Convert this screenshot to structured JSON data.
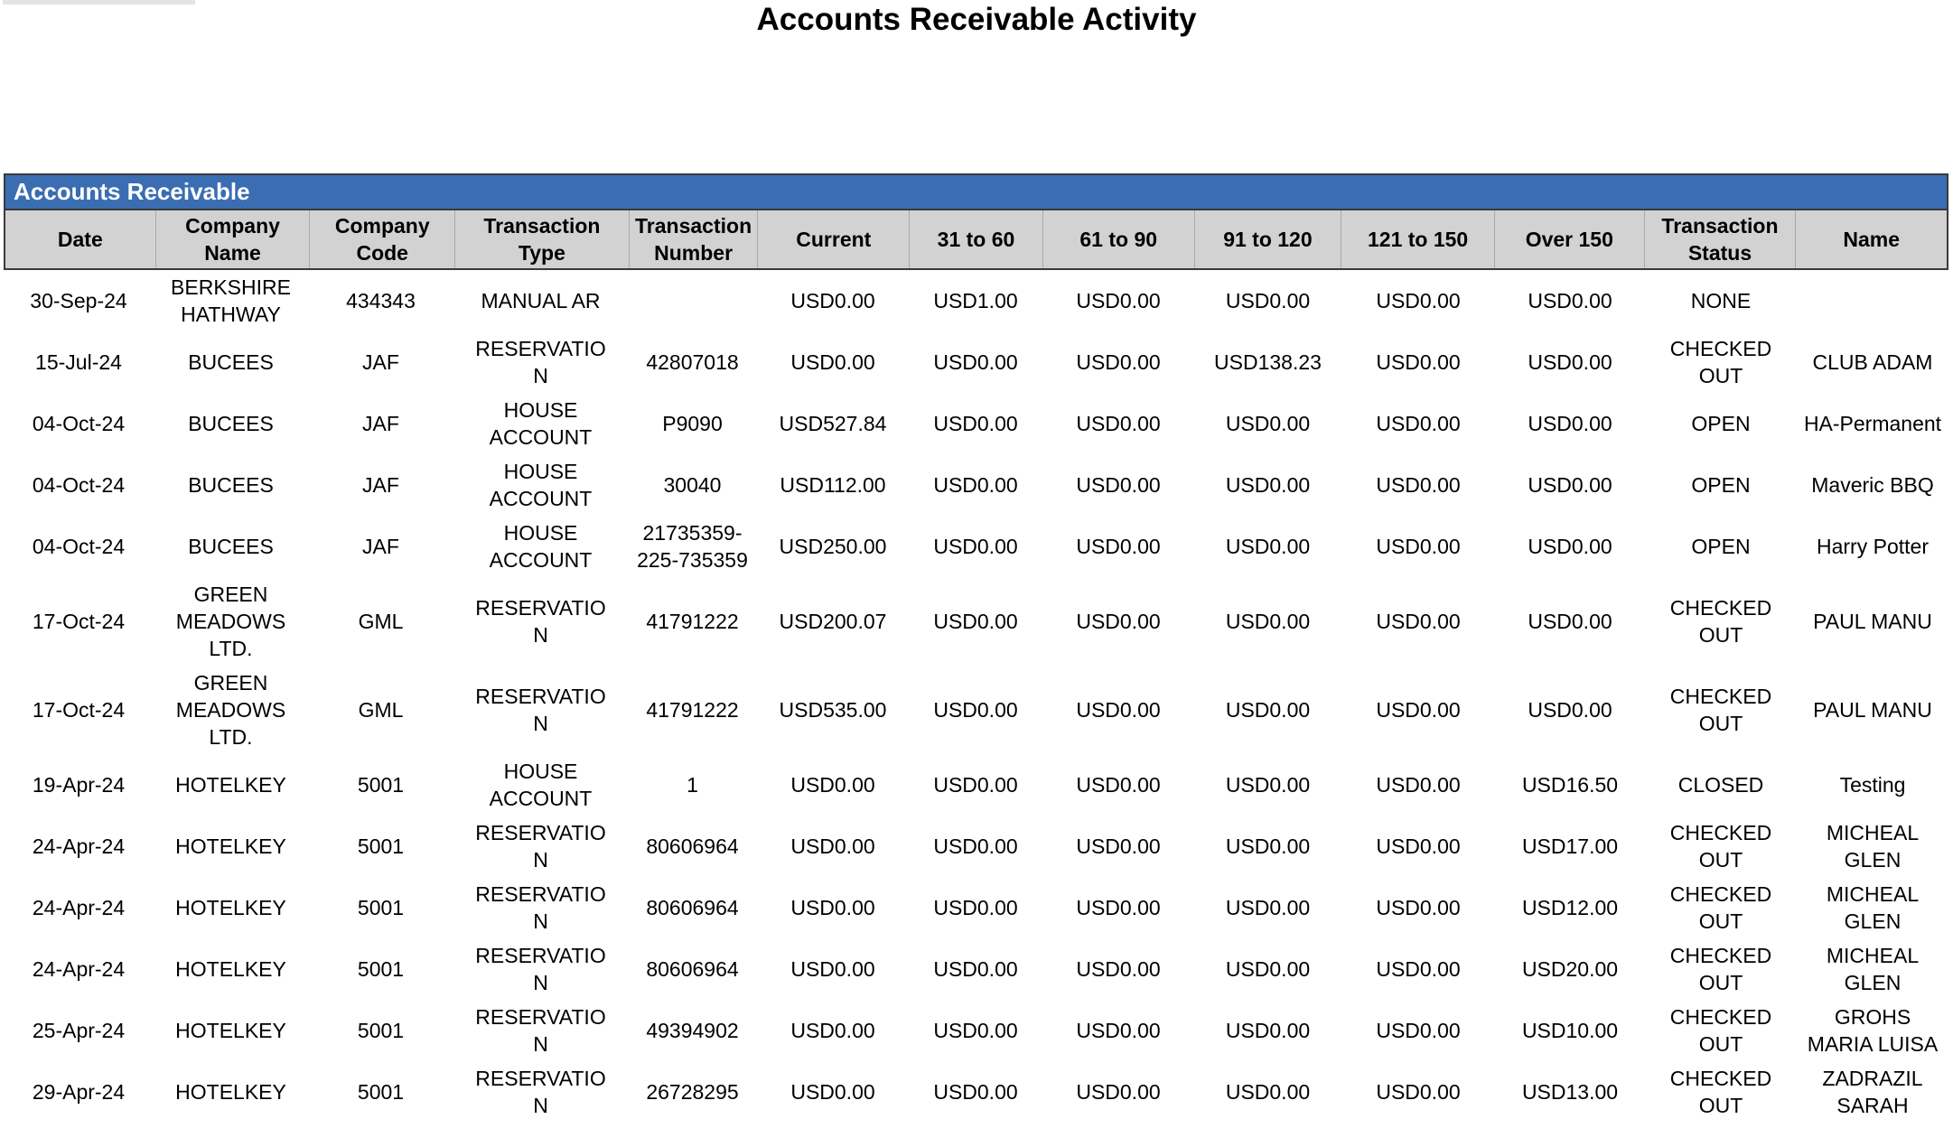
{
  "page": {
    "title": "Accounts Receivable Activity"
  },
  "colors": {
    "section_bar_blue": "#3A6DB2",
    "header_row_gray": "#D2D2D2",
    "border_dark": "#3A3A3A",
    "top_strip_gray": "#E4E4E4",
    "text": "#000000",
    "section_title_text": "#FFFFFF"
  },
  "table": {
    "section_title": "Accounts Receivable",
    "columns": [
      "Date",
      "Company\nName",
      "Company\nCode",
      "Transaction\nType",
      "Transaction\nNumber",
      "Current",
      "31 to 60",
      "61 to 90",
      "91 to 120",
      "121 to 150",
      "Over 150",
      "Transaction\nStatus",
      "Name"
    ],
    "rows": [
      {
        "date": "30-Sep-24",
        "company_name": "BERKSHIRE\nHATHWAY",
        "company_code": "434343",
        "transaction_type": "MANUAL AR",
        "transaction_number": "",
        "current": "USD0.00",
        "b31_60": "USD1.00",
        "b61_90": "USD0.00",
        "b91_120": "USD0.00",
        "b121_150": "USD0.00",
        "over_150": "USD0.00",
        "transaction_status": "NONE",
        "name": ""
      },
      {
        "date": "15-Jul-24",
        "company_name": "BUCEES",
        "company_code": "JAF",
        "transaction_type": "RESERVATIO\nN",
        "transaction_number": "42807018",
        "current": "USD0.00",
        "b31_60": "USD0.00",
        "b61_90": "USD0.00",
        "b91_120": "USD138.23",
        "b121_150": "USD0.00",
        "over_150": "USD0.00",
        "transaction_status": "CHECKED\nOUT",
        "name": "CLUB ADAM"
      },
      {
        "date": "04-Oct-24",
        "company_name": "BUCEES",
        "company_code": "JAF",
        "transaction_type": "HOUSE\nACCOUNT",
        "transaction_number": "P9090",
        "current": "USD527.84",
        "b31_60": "USD0.00",
        "b61_90": "USD0.00",
        "b91_120": "USD0.00",
        "b121_150": "USD0.00",
        "over_150": "USD0.00",
        "transaction_status": "OPEN",
        "name": "HA-Permanent"
      },
      {
        "date": "04-Oct-24",
        "company_name": "BUCEES",
        "company_code": "JAF",
        "transaction_type": "HOUSE\nACCOUNT",
        "transaction_number": "30040",
        "current": "USD112.00",
        "b31_60": "USD0.00",
        "b61_90": "USD0.00",
        "b91_120": "USD0.00",
        "b121_150": "USD0.00",
        "over_150": "USD0.00",
        "transaction_status": "OPEN",
        "name": "Maveric BBQ"
      },
      {
        "date": "04-Oct-24",
        "company_name": "BUCEES",
        "company_code": "JAF",
        "transaction_type": "HOUSE\nACCOUNT",
        "transaction_number": "21735359-\n225-735359",
        "current": "USD250.00",
        "b31_60": "USD0.00",
        "b61_90": "USD0.00",
        "b91_120": "USD0.00",
        "b121_150": "USD0.00",
        "over_150": "USD0.00",
        "transaction_status": "OPEN",
        "name": "Harry Potter"
      },
      {
        "date": "17-Oct-24",
        "company_name": "GREEN\nMEADOWS\nLTD.",
        "company_code": "GML",
        "transaction_type": "RESERVATIO\nN",
        "transaction_number": "41791222",
        "current": "USD200.07",
        "b31_60": "USD0.00",
        "b61_90": "USD0.00",
        "b91_120": "USD0.00",
        "b121_150": "USD0.00",
        "over_150": "USD0.00",
        "transaction_status": "CHECKED\nOUT",
        "name": "PAUL MANU"
      },
      {
        "date": "17-Oct-24",
        "company_name": "GREEN\nMEADOWS\nLTD.",
        "company_code": "GML",
        "transaction_type": "RESERVATIO\nN",
        "transaction_number": "41791222",
        "current": "USD535.00",
        "b31_60": "USD0.00",
        "b61_90": "USD0.00",
        "b91_120": "USD0.00",
        "b121_150": "USD0.00",
        "over_150": "USD0.00",
        "transaction_status": "CHECKED\nOUT",
        "name": "PAUL MANU"
      },
      {
        "date": "19-Apr-24",
        "company_name": "HOTELKEY",
        "company_code": "5001",
        "transaction_type": "HOUSE\nACCOUNT",
        "transaction_number": "1",
        "current": "USD0.00",
        "b31_60": "USD0.00",
        "b61_90": "USD0.00",
        "b91_120": "USD0.00",
        "b121_150": "USD0.00",
        "over_150": "USD16.50",
        "transaction_status": "CLOSED",
        "name": "Testing"
      },
      {
        "date": "24-Apr-24",
        "company_name": "HOTELKEY",
        "company_code": "5001",
        "transaction_type": "RESERVATIO\nN",
        "transaction_number": "80606964",
        "current": "USD0.00",
        "b31_60": "USD0.00",
        "b61_90": "USD0.00",
        "b91_120": "USD0.00",
        "b121_150": "USD0.00",
        "over_150": "USD17.00",
        "transaction_status": "CHECKED\nOUT",
        "name": "MICHEAL\nGLEN"
      },
      {
        "date": "24-Apr-24",
        "company_name": "HOTELKEY",
        "company_code": "5001",
        "transaction_type": "RESERVATIO\nN",
        "transaction_number": "80606964",
        "current": "USD0.00",
        "b31_60": "USD0.00",
        "b61_90": "USD0.00",
        "b91_120": "USD0.00",
        "b121_150": "USD0.00",
        "over_150": "USD12.00",
        "transaction_status": "CHECKED\nOUT",
        "name": "MICHEAL\nGLEN"
      },
      {
        "date": "24-Apr-24",
        "company_name": "HOTELKEY",
        "company_code": "5001",
        "transaction_type": "RESERVATIO\nN",
        "transaction_number": "80606964",
        "current": "USD0.00",
        "b31_60": "USD0.00",
        "b61_90": "USD0.00",
        "b91_120": "USD0.00",
        "b121_150": "USD0.00",
        "over_150": "USD20.00",
        "transaction_status": "CHECKED\nOUT",
        "name": "MICHEAL\nGLEN"
      },
      {
        "date": "25-Apr-24",
        "company_name": "HOTELKEY",
        "company_code": "5001",
        "transaction_type": "RESERVATIO\nN",
        "transaction_number": "49394902",
        "current": "USD0.00",
        "b31_60": "USD0.00",
        "b61_90": "USD0.00",
        "b91_120": "USD0.00",
        "b121_150": "USD0.00",
        "over_150": "USD10.00",
        "transaction_status": "CHECKED\nOUT",
        "name": "GROHS\nMARIA LUISA"
      },
      {
        "date": "29-Apr-24",
        "company_name": "HOTELKEY",
        "company_code": "5001",
        "transaction_type": "RESERVATIO\nN",
        "transaction_number": "26728295",
        "current": "USD0.00",
        "b31_60": "USD0.00",
        "b61_90": "USD0.00",
        "b91_120": "USD0.00",
        "b121_150": "USD0.00",
        "over_150": "USD13.00",
        "transaction_status": "CHECKED\nOUT",
        "name": "ZADRAZIL\nSARAH"
      }
    ]
  }
}
